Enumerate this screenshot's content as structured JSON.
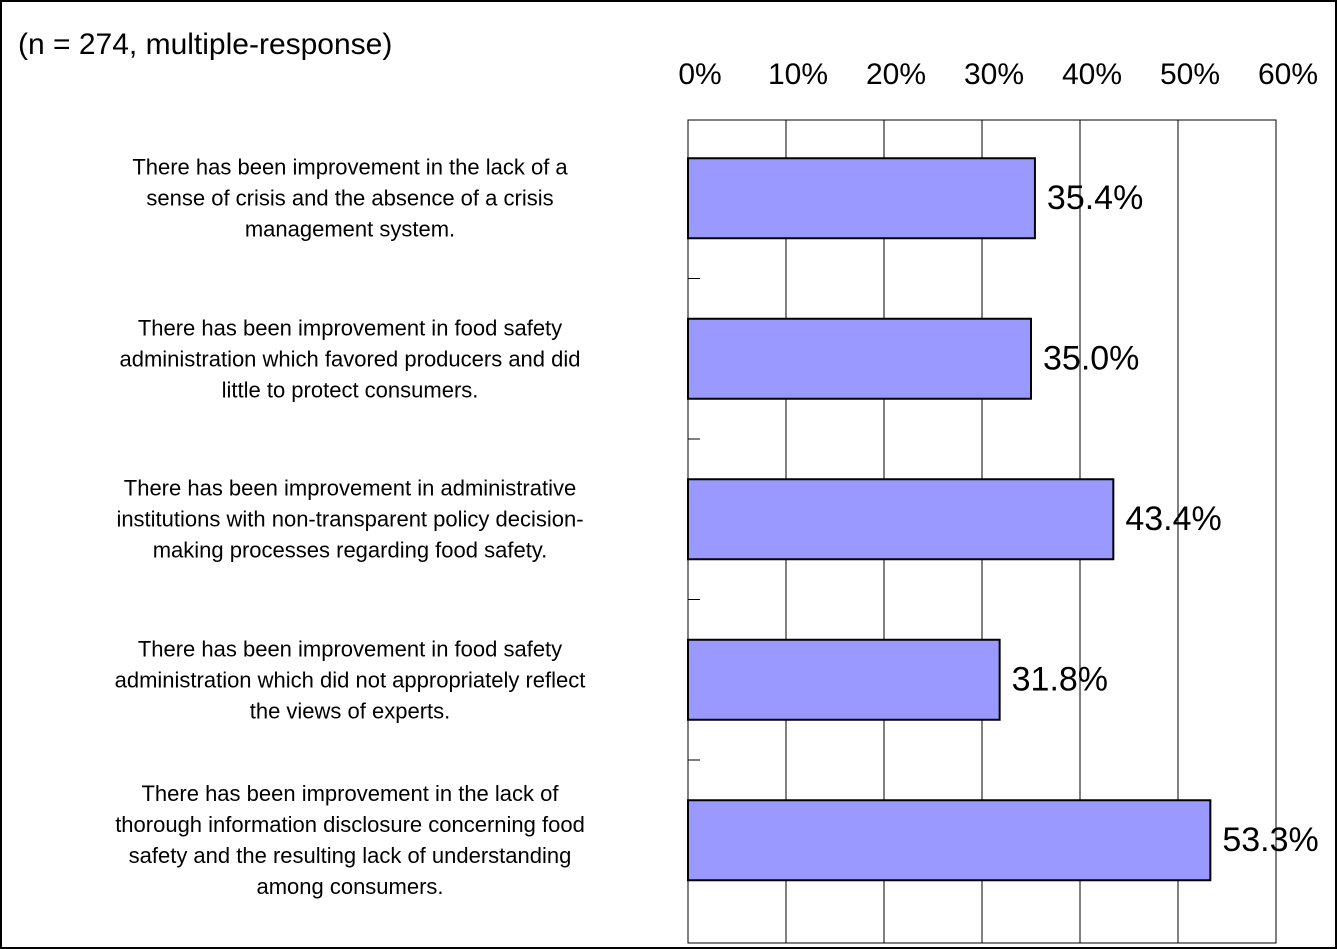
{
  "chart_data": {
    "type": "hbar",
    "title": "(n = 274, multiple-response)",
    "categories": [
      "There has been improvement in the lack of a\nsense of crisis and the absence of a crisis\nmanagement system.",
      "There has been improvement in food safety\nadministration which favored producers and did\nlittle to protect consumers.",
      "There has been improvement in administrative\ninstitutions with non-transparent policy decision-\nmaking processes regarding food safety.",
      "There has been improvement in food safety\nadministration which did not appropriately reflect\nthe views of experts.",
      "There has been improvement in the lack of\nthorough information disclosure concerning food\nsafety and the resulting lack of understanding\namong consumers."
    ],
    "values": [
      35.4,
      35.0,
      43.4,
      31.8,
      53.3
    ],
    "value_labels": [
      "35.4%",
      "35.0%",
      "43.4%",
      "31.8%",
      "53.3%"
    ],
    "color": "#9999ff",
    "xlim": [
      0,
      60
    ],
    "xticks": [
      {
        "value": 0,
        "label": "0%"
      },
      {
        "value": 10,
        "label": "10%"
      },
      {
        "value": 20,
        "label": "20%"
      },
      {
        "value": 30,
        "label": "30%"
      },
      {
        "value": 40,
        "label": "40%"
      },
      {
        "value": 50,
        "label": "50%"
      },
      {
        "value": 60,
        "label": "60%"
      }
    ],
    "grid": true
  }
}
